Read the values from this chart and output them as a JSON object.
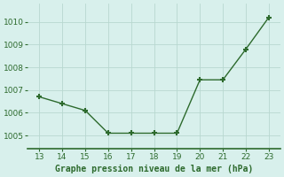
{
  "x": [
    13,
    14,
    15,
    16,
    17,
    18,
    19,
    20,
    21,
    22,
    23
  ],
  "y": [
    1006.7,
    1006.4,
    1006.1,
    1005.1,
    1005.1,
    1005.1,
    1005.1,
    1007.45,
    1007.45,
    1008.8,
    1010.2
  ],
  "line_color": "#2d6a2d",
  "marker": "+",
  "marker_size": 5,
  "marker_linewidth": 1.5,
  "background_color": "#d8f0ec",
  "grid_color": "#b8d8d0",
  "xlabel": "Graphe pression niveau de la mer (hPa)",
  "xlabel_color": "#2d6a2d",
  "tick_color": "#2d6a2d",
  "spine_color": "#2d6a2d",
  "yticks": [
    1005,
    1006,
    1007,
    1008,
    1009,
    1010
  ],
  "xticks": [
    13,
    14,
    15,
    16,
    17,
    18,
    19,
    20,
    21,
    22,
    23
  ],
  "ylim": [
    1004.4,
    1010.8
  ],
  "xlim": [
    12.5,
    23.5
  ],
  "xlabel_fontsize": 7,
  "tick_fontsize": 6.5
}
